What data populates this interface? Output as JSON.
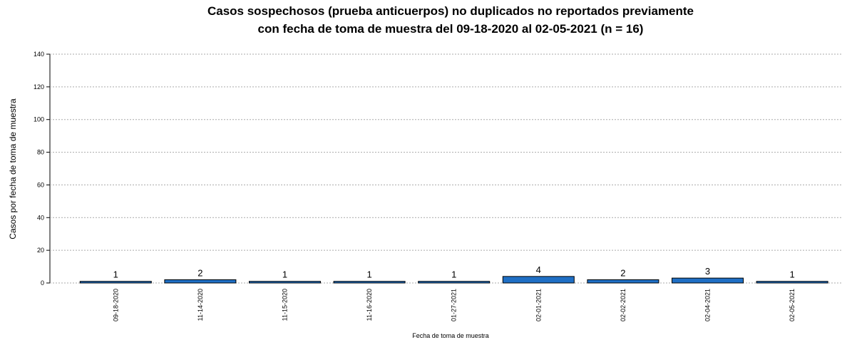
{
  "chart_data": {
    "type": "bar",
    "title": [
      "Casos sospechosos (prueba anticuerpos) no duplicados no reportados previamente",
      "con fecha de toma de muestra del 09-18-2020 al 02-05-2021 (n = 16)"
    ],
    "x_label": "Fecha de toma de muestra",
    "y_label": "Casos por fecha de toma de muestra",
    "categories": [
      "09-18-2020",
      "11-14-2020",
      "11-15-2020",
      "11-16-2020",
      "01-27-2021",
      "02-01-2021",
      "02-02-2021",
      "02-04-2021",
      "02-05-2021"
    ],
    "values": [
      1,
      2,
      1,
      1,
      1,
      4,
      2,
      3,
      1
    ],
    "color": "#1f6fc5",
    "ylim": [
      0,
      140
    ],
    "yticks": [
      0,
      20,
      40,
      60,
      80,
      100,
      120,
      140
    ],
    "grid": true
  }
}
